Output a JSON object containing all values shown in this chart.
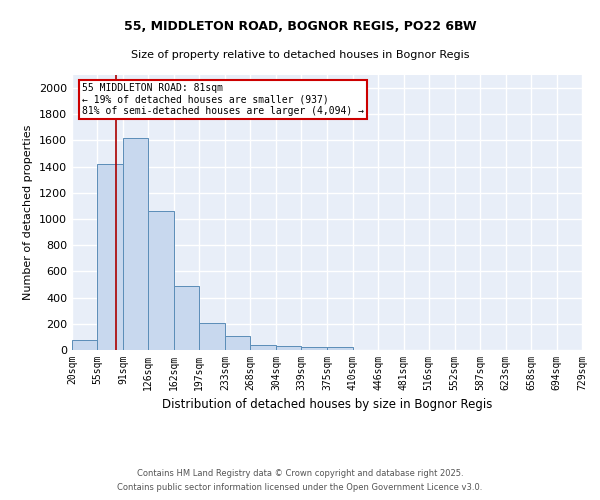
{
  "title1": "55, MIDDLETON ROAD, BOGNOR REGIS, PO22 6BW",
  "title2": "Size of property relative to detached houses in Bognor Regis",
  "xlabel": "Distribution of detached houses by size in Bognor Regis",
  "ylabel": "Number of detached properties",
  "bins": [
    20,
    55,
    91,
    126,
    162,
    197,
    233,
    268,
    304,
    339,
    375,
    410,
    446,
    481,
    516,
    552,
    587,
    623,
    658,
    694,
    729
  ],
  "bar_heights": [
    80,
    1420,
    1620,
    1060,
    490,
    205,
    105,
    40,
    30,
    20,
    20,
    0,
    0,
    0,
    0,
    0,
    0,
    0,
    0,
    0,
    0
  ],
  "bar_color": "#c8d8ee",
  "bar_edge_color": "#5b8db8",
  "vline_x": 81,
  "vline_color": "#aa0000",
  "annotation_line1": "55 MIDDLETON ROAD: 81sqm",
  "annotation_line2": "← 19% of detached houses are smaller (937)",
  "annotation_line3": "81% of semi-detached houses are larger (4,094) →",
  "annotation_box_color": "white",
  "annotation_box_edge_color": "#cc0000",
  "ylim": [
    0,
    2100
  ],
  "yticks": [
    0,
    200,
    400,
    600,
    800,
    1000,
    1200,
    1400,
    1600,
    1800,
    2000
  ],
  "bg_color": "#e8eef8",
  "grid_color": "white",
  "footer1": "Contains HM Land Registry data © Crown copyright and database right 2025.",
  "footer2": "Contains public sector information licensed under the Open Government Licence v3.0."
}
